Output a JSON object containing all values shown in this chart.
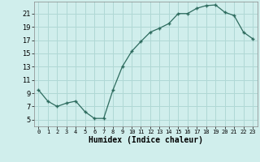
{
  "x": [
    0,
    1,
    2,
    3,
    4,
    5,
    6,
    7,
    8,
    9,
    10,
    11,
    12,
    13,
    14,
    15,
    16,
    17,
    18,
    19,
    20,
    21,
    22,
    23
  ],
  "y": [
    9.5,
    7.8,
    7.0,
    7.5,
    7.8,
    6.2,
    5.2,
    5.2,
    9.5,
    13.0,
    15.3,
    16.8,
    18.2,
    18.8,
    19.5,
    21.0,
    21.0,
    21.8,
    22.2,
    22.3,
    21.2,
    20.7,
    18.2,
    17.2
  ],
  "xlabel": "Humidex (Indice chaleur)",
  "ylim": [
    4,
    22.8
  ],
  "xlim": [
    -0.5,
    23.5
  ],
  "yticks": [
    5,
    7,
    9,
    11,
    13,
    15,
    17,
    19,
    21
  ],
  "xticks": [
    0,
    1,
    2,
    3,
    4,
    5,
    6,
    7,
    8,
    9,
    10,
    11,
    12,
    13,
    14,
    15,
    16,
    17,
    18,
    19,
    20,
    21,
    22,
    23
  ],
  "line_color": "#2d6b5e",
  "marker": "+",
  "bg_color": "#d0eeec",
  "grid_color": "#b0d8d5",
  "text_color": "#000000"
}
